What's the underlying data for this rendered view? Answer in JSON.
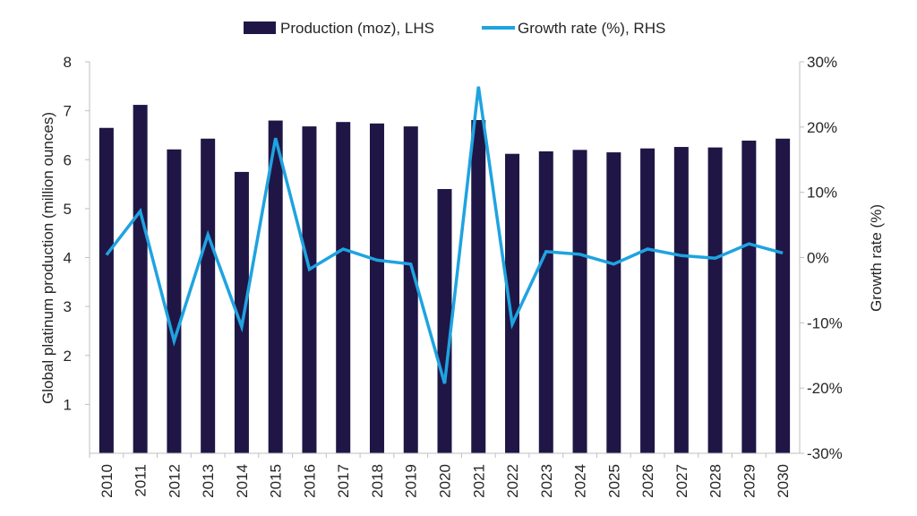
{
  "chart_data": {
    "type": "bar",
    "categories": [
      "2010",
      "2011",
      "2012",
      "2013",
      "2014",
      "2015",
      "2016",
      "2017",
      "2018",
      "2019",
      "2020",
      "2021",
      "2022",
      "2023",
      "2024",
      "2025",
      "2026",
      "2027",
      "2028",
      "2029",
      "2030"
    ],
    "series": [
      {
        "name": "Production (moz), LHS",
        "type": "bar",
        "axis": "left",
        "color": "#1f1646",
        "values": [
          6.65,
          7.12,
          6.21,
          6.43,
          5.75,
          6.8,
          6.68,
          6.77,
          6.74,
          6.68,
          5.4,
          6.81,
          6.12,
          6.17,
          6.2,
          6.15,
          6.23,
          6.26,
          6.25,
          6.39,
          6.43
        ]
      },
      {
        "name": "Growth rate (%), RHS",
        "type": "line",
        "axis": "right",
        "color": "#1fa3e0",
        "values": [
          0.4,
          7.1,
          -12.8,
          3.5,
          -10.6,
          18.3,
          -1.8,
          1.3,
          -0.4,
          -1.0,
          -19.3,
          26.2,
          -10.2,
          0.9,
          0.5,
          -1.0,
          1.3,
          0.3,
          -0.1,
          2.1,
          0.7
        ]
      }
    ],
    "ylabel": "Global platinum production (million ounces)",
    "y2label": "Growth rate (%)",
    "ylim": [
      0,
      8
    ],
    "yticks": [
      "1",
      "2",
      "3",
      "4",
      "5",
      "6",
      "7",
      "8"
    ],
    "y2lim": [
      -30,
      30
    ],
    "y2ticks": [
      "-30%",
      "-20%",
      "-10%",
      "0%",
      "10%",
      "20%",
      "30%"
    ],
    "legend_position": "top-center",
    "grid": false
  }
}
